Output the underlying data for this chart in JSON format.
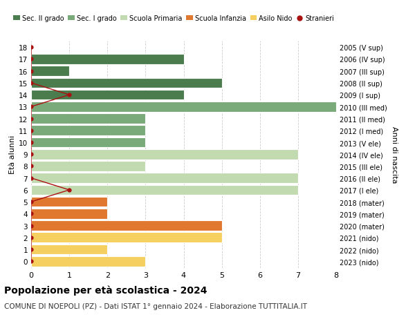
{
  "ages": [
    18,
    17,
    16,
    15,
    14,
    13,
    12,
    11,
    10,
    9,
    8,
    7,
    6,
    5,
    4,
    3,
    2,
    1,
    0
  ],
  "right_labels": [
    "2005 (V sup)",
    "2006 (IV sup)",
    "2007 (III sup)",
    "2008 (II sup)",
    "2009 (I sup)",
    "2010 (III med)",
    "2011 (II med)",
    "2012 (I med)",
    "2013 (V ele)",
    "2014 (IV ele)",
    "2015 (III ele)",
    "2016 (II ele)",
    "2017 (I ele)",
    "2018 (mater)",
    "2019 (mater)",
    "2020 (mater)",
    "2021 (nido)",
    "2022 (nido)",
    "2023 (nido)"
  ],
  "bar_values": [
    0,
    4,
    1,
    5,
    4,
    8,
    3,
    3,
    3,
    7,
    3,
    7,
    7,
    2,
    2,
    5,
    5,
    2,
    3
  ],
  "bar_colors": [
    "#4a7c4e",
    "#4a7c4e",
    "#4a7c4e",
    "#4a7c4e",
    "#4a7c4e",
    "#7aaa7a",
    "#7aaa7a",
    "#7aaa7a",
    "#7aaa7a",
    "#c2dab0",
    "#c2dab0",
    "#c2dab0",
    "#c2dab0",
    "#e07830",
    "#e07830",
    "#e07830",
    "#f5d060",
    "#f5d060",
    "#f5d060"
  ],
  "stranieri_ages": [
    18,
    17,
    16,
    15,
    14,
    13,
    12,
    11,
    10,
    9,
    8,
    7,
    6,
    5,
    4,
    3,
    2,
    1,
    0
  ],
  "stranieri_values": [
    0,
    0,
    0,
    0,
    1,
    0,
    0,
    0,
    0,
    0,
    0,
    0,
    1,
    0,
    0,
    0,
    0,
    0,
    0
  ],
  "legend_labels": [
    "Sec. II grado",
    "Sec. I grado",
    "Scuola Primaria",
    "Scuola Infanzia",
    "Asilo Nido",
    "Stranieri"
  ],
  "legend_colors": [
    "#4a7c4e",
    "#7aaa7a",
    "#c2dab0",
    "#e07830",
    "#f5d060",
    "#aa1111"
  ],
  "ylabel_left": "Età alunni",
  "ylabel_right": "Anni di nascita",
  "title": "Popolazione per età scolastica - 2024",
  "subtitle": "COMUNE DI NOEPOLI (PZ) - Dati ISTAT 1° gennaio 2024 - Elaborazione TUTTITALIA.IT",
  "xlim": [
    0,
    8
  ],
  "grid_color": "#cccccc",
  "bar_height": 0.85,
  "stranieri_color": "#aa1111",
  "stranieri_line_color": "#aa1111",
  "bg_color": "#ffffff"
}
